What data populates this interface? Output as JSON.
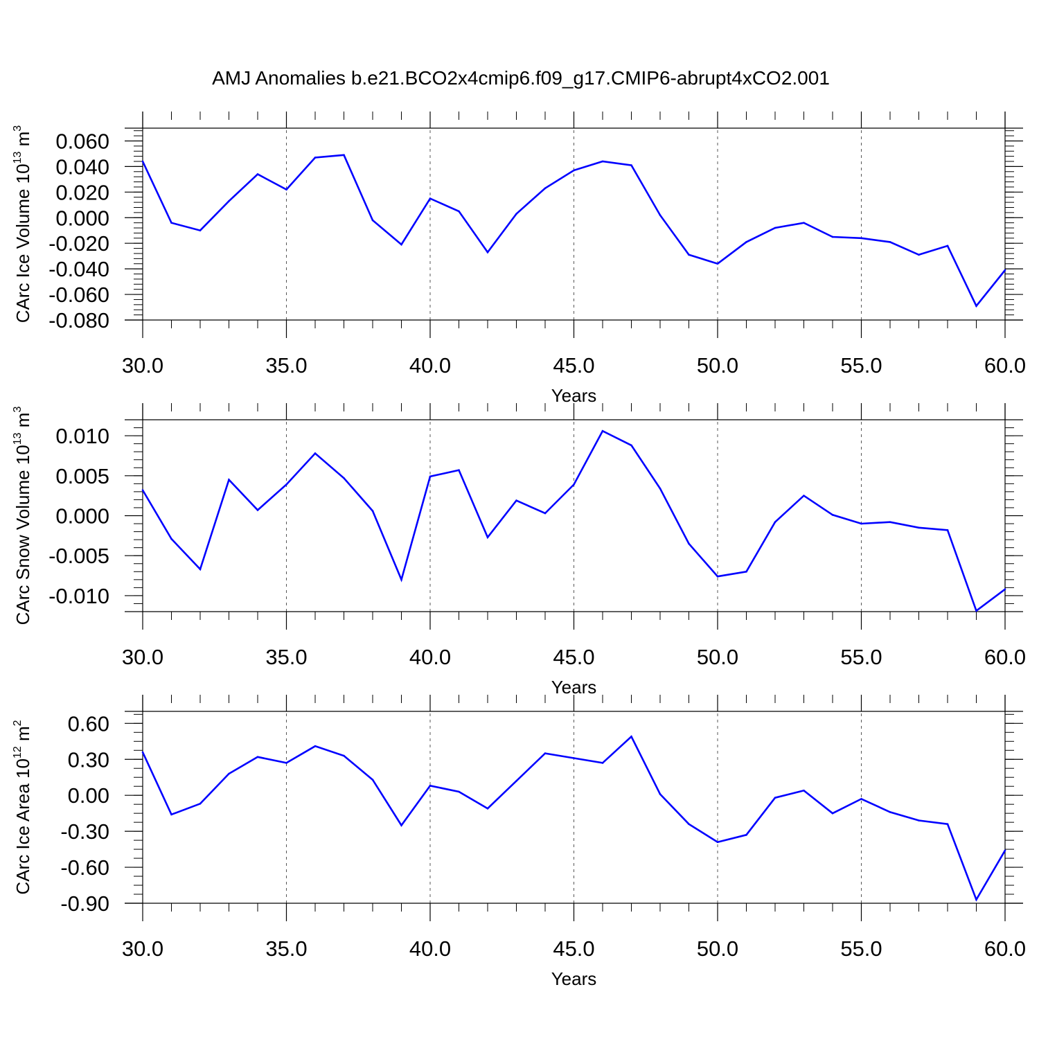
{
  "title": "AMJ Anomalies b.e21.BCO2x4cmip6.f09_g17.CMIP6-abrupt4xCO2.001",
  "colors": {
    "line": "#0000ff",
    "axis": "#000000",
    "grid": "#555555"
  },
  "chart_data": [
    {
      "type": "line",
      "xlabel": "Years",
      "ylabel": {
        "text": "CArc Ice Volume 10",
        "exp": "13",
        "unit": " m",
        "unit_exp": "3"
      },
      "xlim": [
        30,
        60
      ],
      "ylim": [
        -0.08,
        0.07
      ],
      "xticks": [
        30,
        35,
        40,
        45,
        50,
        55,
        60
      ],
      "xtick_labels": [
        "30.0",
        "35.0",
        "40.0",
        "45.0",
        "50.0",
        "55.0",
        "60.0"
      ],
      "yticks": [
        0.06,
        0.04,
        0.02,
        0.0,
        -0.02,
        -0.04,
        -0.06,
        -0.08
      ],
      "ytick_labels": [
        "0.060",
        "0.040",
        "0.020",
        "0.000",
        "-0.020",
        "-0.040",
        "-0.060",
        "-0.080"
      ],
      "yminor_step": 0.004,
      "grid": "vertical-dashed",
      "x": [
        30,
        31,
        32,
        33,
        34,
        35,
        36,
        37,
        38,
        39,
        40,
        41,
        42,
        43,
        44,
        45,
        46,
        47,
        48,
        49,
        50,
        51,
        52,
        53,
        54,
        55,
        56,
        57,
        58,
        59,
        60
      ],
      "series": [
        {
          "values": [
            0.044,
            -0.004,
            -0.01,
            0.013,
            0.034,
            0.022,
            0.047,
            0.049,
            -0.002,
            -0.021,
            0.015,
            0.005,
            -0.027,
            0.003,
            0.023,
            0.037,
            0.044,
            0.041,
            0.002,
            -0.029,
            -0.036,
            -0.019,
            -0.008,
            -0.004,
            -0.015,
            -0.016,
            -0.019,
            -0.029,
            -0.022,
            -0.069,
            -0.041
          ]
        }
      ]
    },
    {
      "type": "line",
      "xlabel": "Years",
      "ylabel": {
        "text": "CArc Snow Volume 10",
        "exp": "13",
        "unit": " m",
        "unit_exp": "3"
      },
      "xlim": [
        30,
        60
      ],
      "ylim": [
        -0.012,
        0.012
      ],
      "xticks": [
        30,
        35,
        40,
        45,
        50,
        55,
        60
      ],
      "xtick_labels": [
        "30.0",
        "35.0",
        "40.0",
        "45.0",
        "50.0",
        "55.0",
        "60.0"
      ],
      "yticks": [
        0.01,
        0.005,
        0.0,
        -0.005,
        -0.01
      ],
      "ytick_labels": [
        "0.010",
        "0.005",
        "0.000",
        "-0.005",
        "-0.010"
      ],
      "yminor_step": 0.001,
      "grid": "vertical-dashed",
      "x": [
        30,
        31,
        32,
        33,
        34,
        35,
        36,
        37,
        38,
        39,
        40,
        41,
        42,
        43,
        44,
        45,
        46,
        47,
        48,
        49,
        50,
        51,
        52,
        53,
        54,
        55,
        56,
        57,
        58,
        59,
        60
      ],
      "series": [
        {
          "values": [
            0.0032,
            -0.0029,
            -0.0067,
            0.0045,
            0.0007,
            0.0039,
            0.0078,
            0.0047,
            0.0006,
            -0.008,
            0.0049,
            0.0057,
            -0.0027,
            0.0019,
            0.0003,
            0.0039,
            0.0106,
            0.0088,
            0.0034,
            -0.0035,
            -0.0076,
            -0.007,
            -0.0008,
            0.0025,
            0.0001,
            -0.001,
            -0.0008,
            -0.0015,
            -0.0018,
            -0.0119,
            -0.0092
          ]
        }
      ]
    },
    {
      "type": "line",
      "xlabel": "Years",
      "ylabel": {
        "text": "CArc Ice Area 10",
        "exp": "12",
        "unit": " m",
        "unit_exp": "2"
      },
      "xlim": [
        30,
        60
      ],
      "ylim": [
        -0.9,
        0.7
      ],
      "xticks": [
        30,
        35,
        40,
        45,
        50,
        55,
        60
      ],
      "xtick_labels": [
        "30.0",
        "35.0",
        "40.0",
        "45.0",
        "50.0",
        "55.0",
        "60.0"
      ],
      "yticks": [
        0.6,
        0.3,
        0.0,
        -0.3,
        -0.6,
        -0.9
      ],
      "ytick_labels": [
        "0.60",
        "0.30",
        "0.00",
        "-0.30",
        "-0.60",
        "-0.90"
      ],
      "yminor_step": 0.075,
      "grid": "vertical-dashed",
      "x": [
        30,
        31,
        32,
        33,
        34,
        35,
        36,
        37,
        38,
        39,
        40,
        41,
        42,
        43,
        44,
        45,
        46,
        47,
        48,
        49,
        50,
        51,
        52,
        53,
        54,
        55,
        56,
        57,
        58,
        59,
        60
      ],
      "series": [
        {
          "values": [
            0.36,
            -0.16,
            -0.07,
            0.18,
            0.32,
            0.27,
            0.41,
            0.33,
            0.13,
            -0.25,
            0.08,
            0.03,
            -0.11,
            0.12,
            0.35,
            0.31,
            0.27,
            0.49,
            0.01,
            -0.24,
            -0.39,
            -0.33,
            -0.02,
            0.04,
            -0.15,
            -0.03,
            -0.14,
            -0.21,
            -0.24,
            -0.87,
            -0.46
          ]
        }
      ]
    }
  ]
}
